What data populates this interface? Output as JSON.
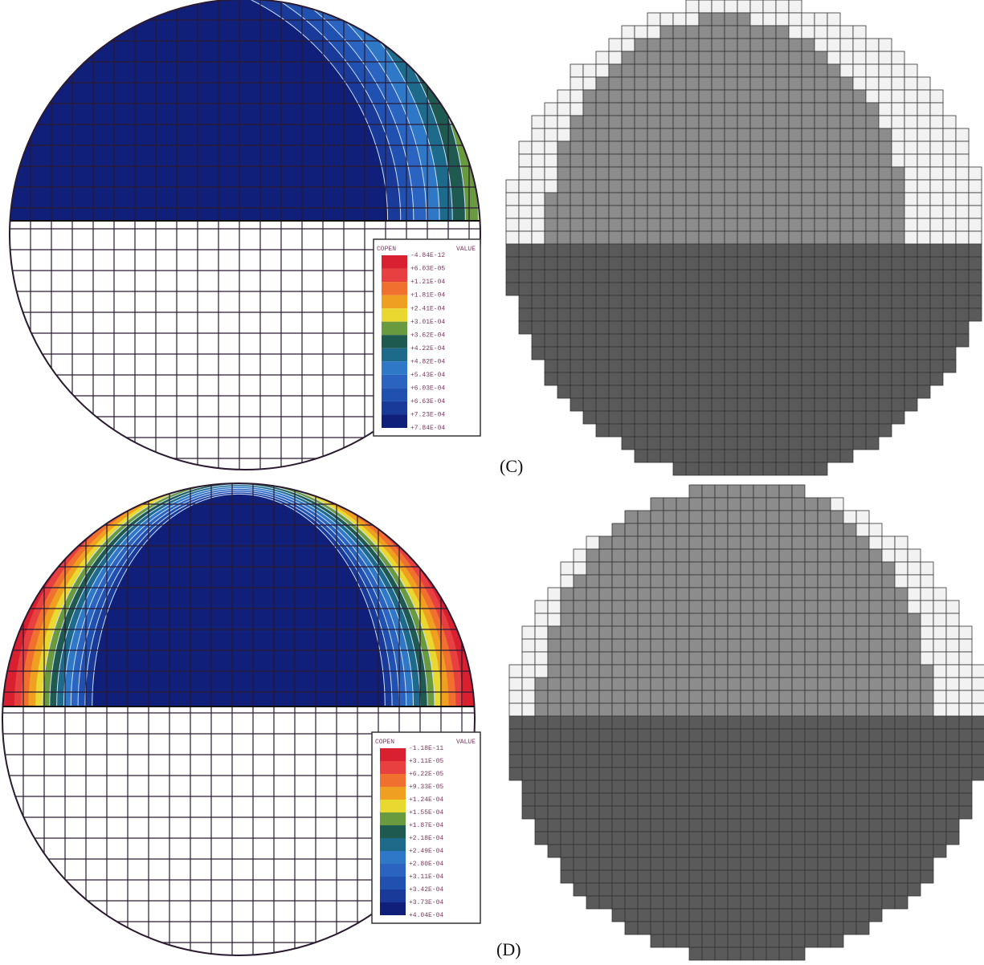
{
  "panels": [
    {
      "label": "(C)",
      "legend": {
        "header": [
          "COPEN",
          "VALUE"
        ],
        "values": [
          "-4.84E-12",
          "+6.03E-05",
          "+1.21E-04",
          "+1.81E-04",
          "+2.41E-04",
          "+3.01E-04",
          "+3.62E-04",
          "+4.22E-04",
          "+4.82E-04",
          "+5.43E-04",
          "+6.03E-04",
          "+6.63E-04",
          "+7.23E-04",
          "+7.84E-04"
        ]
      }
    },
    {
      "label": "(D)",
      "legend": {
        "header": [
          "COPEN",
          "VALUE"
        ],
        "values": [
          "-1.18E-11",
          "+3.11E-05",
          "+6.22E-05",
          "+9.33E-05",
          "+1.24E-04",
          "+1.55E-04",
          "+1.87E-04",
          "+2.18E-04",
          "+2.49E-04",
          "+2.80E-04",
          "+3.11E-04",
          "+3.42E-04",
          "+3.73E-04",
          "+4.04E-04"
        ]
      }
    }
  ]
}
